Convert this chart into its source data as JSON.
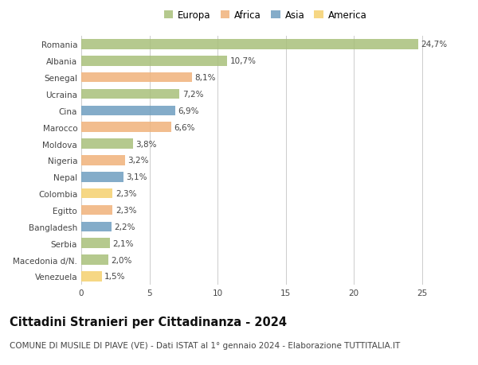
{
  "countries": [
    "Romania",
    "Albania",
    "Senegal",
    "Ucraina",
    "Cina",
    "Marocco",
    "Moldova",
    "Nigeria",
    "Nepal",
    "Colombia",
    "Egitto",
    "Bangladesh",
    "Serbia",
    "Macedonia d/N.",
    "Venezuela"
  ],
  "values": [
    24.7,
    10.7,
    8.1,
    7.2,
    6.9,
    6.6,
    3.8,
    3.2,
    3.1,
    2.3,
    2.3,
    2.2,
    2.1,
    2.0,
    1.5
  ],
  "labels": [
    "24,7%",
    "10,7%",
    "8,1%",
    "7,2%",
    "6,9%",
    "6,6%",
    "3,8%",
    "3,2%",
    "3,1%",
    "2,3%",
    "2,3%",
    "2,2%",
    "2,1%",
    "2,0%",
    "1,5%"
  ],
  "continents": [
    "Europa",
    "Europa",
    "Africa",
    "Europa",
    "Asia",
    "Africa",
    "Europa",
    "Africa",
    "Asia",
    "America",
    "Africa",
    "Asia",
    "Europa",
    "Europa",
    "America"
  ],
  "colors": {
    "Europa": "#a8c07a",
    "Africa": "#f0b27a",
    "Asia": "#6e9ec0",
    "America": "#f5d06e"
  },
  "legend_order": [
    "Europa",
    "Africa",
    "Asia",
    "America"
  ],
  "title": "Cittadini Stranieri per Cittadinanza - 2024",
  "subtitle": "COMUNE DI MUSILE DI PIAVE (VE) - Dati ISTAT al 1° gennaio 2024 - Elaborazione TUTTITALIA.IT",
  "xlim": [
    0,
    27
  ],
  "xticks": [
    0,
    5,
    10,
    15,
    20,
    25
  ],
  "background_color": "#ffffff",
  "grid_color": "#cccccc",
  "bar_alpha": 0.85,
  "title_fontsize": 10.5,
  "subtitle_fontsize": 7.5,
  "label_fontsize": 7.5,
  "tick_fontsize": 7.5,
  "legend_fontsize": 8.5
}
